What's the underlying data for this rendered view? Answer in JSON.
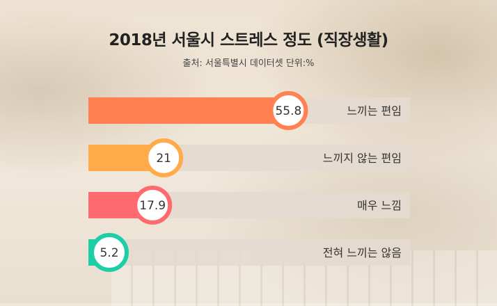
{
  "chart_data": {
    "type": "bar",
    "orientation": "horizontal",
    "title": "2018년  서울시 스트레스 정도 (직장생활)",
    "subtitle": "출처: 서울특별시 데이터셋    단위:%",
    "xlim": [
      0,
      100
    ],
    "categories": [
      "느끼는 편임",
      "느끼지 않는 편임",
      "매우 느낌",
      "전혀 느끼는 않음"
    ],
    "values": [
      55.8,
      21,
      17.9,
      5.2
    ],
    "value_labels": [
      "55.8",
      "21",
      "17.9",
      "5.2"
    ],
    "colors": [
      "#ff8050",
      "#ffab4a",
      "#ff6a6e",
      "#1ccfa6"
    ],
    "track_color": "#e4dad0"
  }
}
